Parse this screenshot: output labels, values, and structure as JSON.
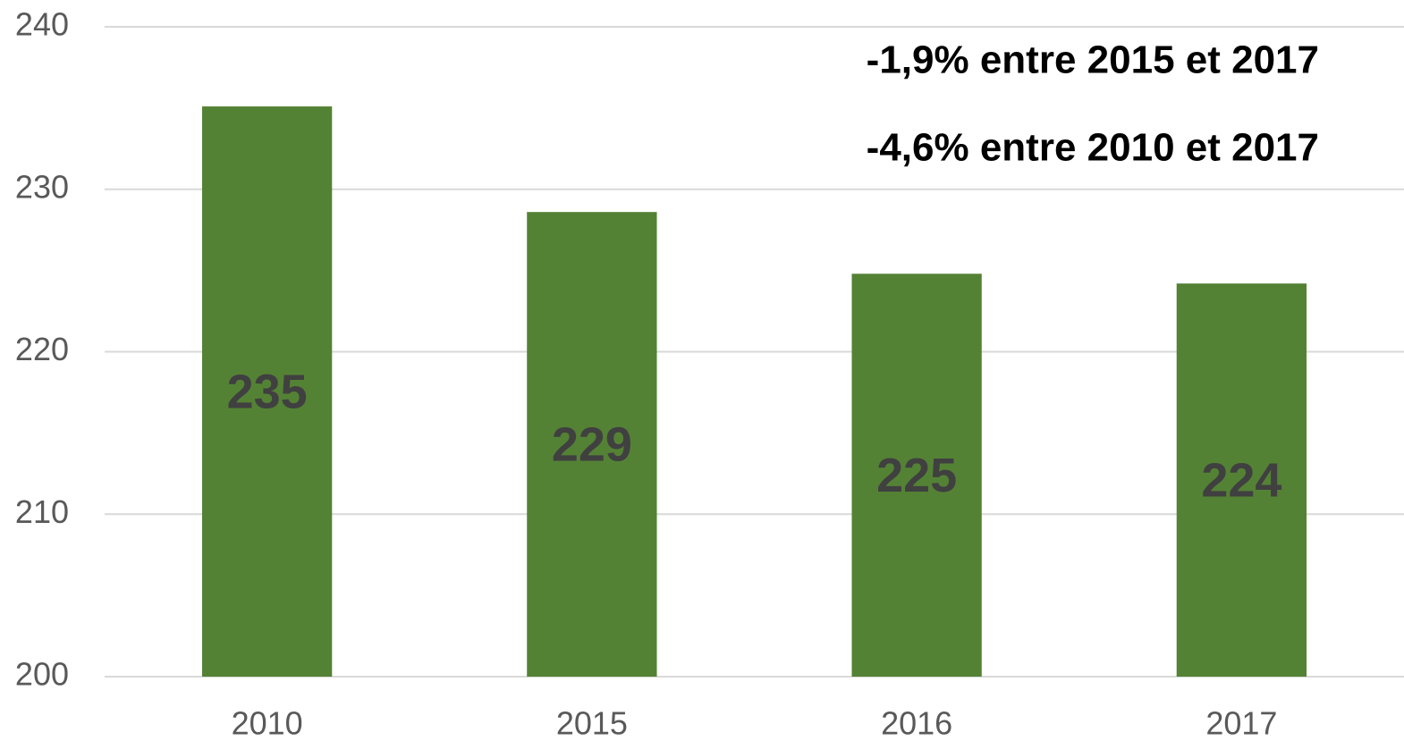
{
  "chart_data": {
    "type": "bar",
    "categories": [
      "2010",
      "2015",
      "2016",
      "2017"
    ],
    "values": [
      235.1,
      228.6,
      224.8,
      224.2
    ],
    "value_labels": [
      "235",
      "229",
      "225",
      "224"
    ],
    "color": "#548235",
    "ylim": [
      200,
      240
    ],
    "yticks": [
      200,
      210,
      220,
      230,
      240
    ],
    "grid": true,
    "annotations": [
      "-1,9% entre 2015 et 2017",
      "-4,6% entre 2010 et 2017"
    ]
  }
}
